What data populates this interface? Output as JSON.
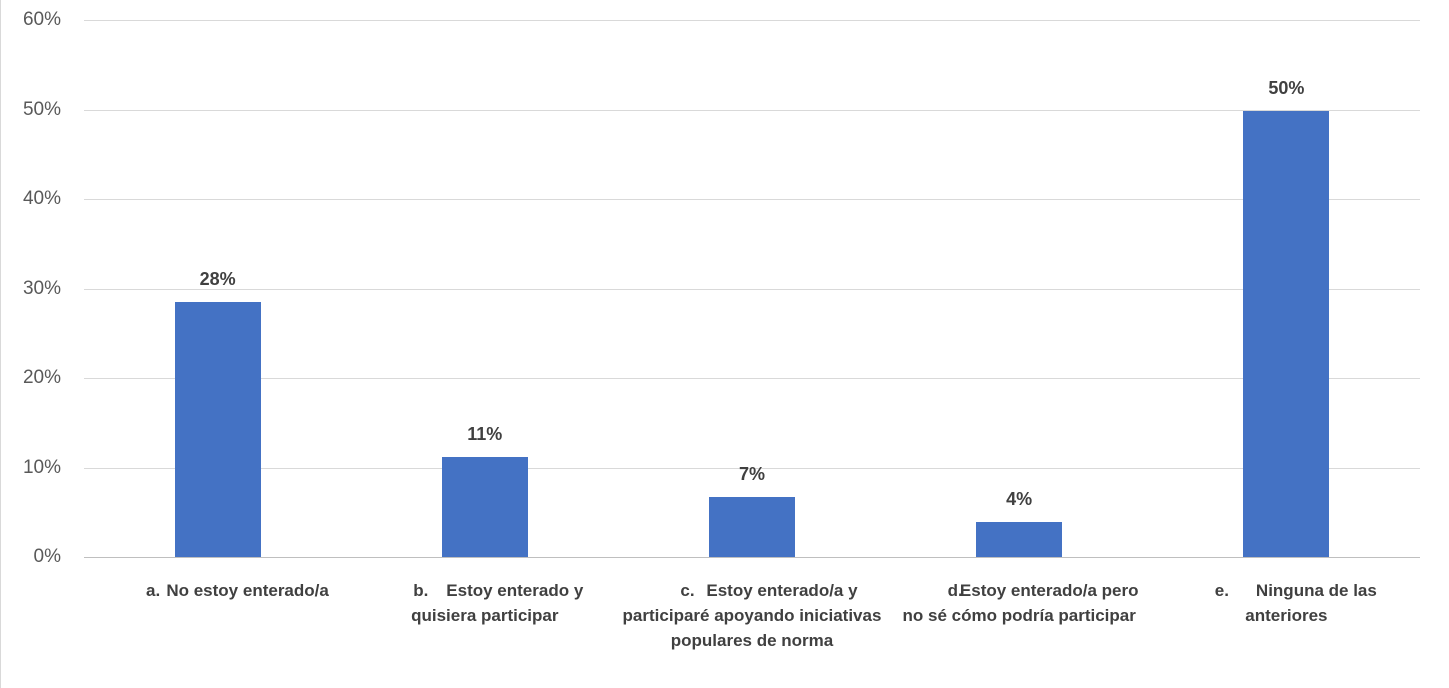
{
  "chart_data": {
    "type": "bar",
    "title": "",
    "xlabel": "",
    "ylabel": "",
    "ylim": [
      0,
      0.6
    ],
    "yticks": [
      "0%",
      "10%",
      "20%",
      "30%",
      "40%",
      "50%",
      "60%"
    ],
    "grid": true,
    "legend": "none",
    "bar_color": "#4472C4",
    "categories": [
      {
        "prefix": "a.",
        "text": "No estoy enterado/a"
      },
      {
        "prefix": "b.",
        "text": "Estoy enterado y quisiera participar"
      },
      {
        "prefix": "c.",
        "text": "Estoy enterado/a y participaré apoyando iniciativas populares de norma"
      },
      {
        "prefix": "d.",
        "text": "Estoy enterado/a pero no sé cómo podría participar"
      },
      {
        "prefix": "e.",
        "text": "Ninguna de las anteriores"
      }
    ],
    "values": [
      0.285,
      0.112,
      0.067,
      0.039,
      0.498
    ],
    "data_labels": [
      "28%",
      "11%",
      "7%",
      "4%",
      "50%"
    ]
  }
}
